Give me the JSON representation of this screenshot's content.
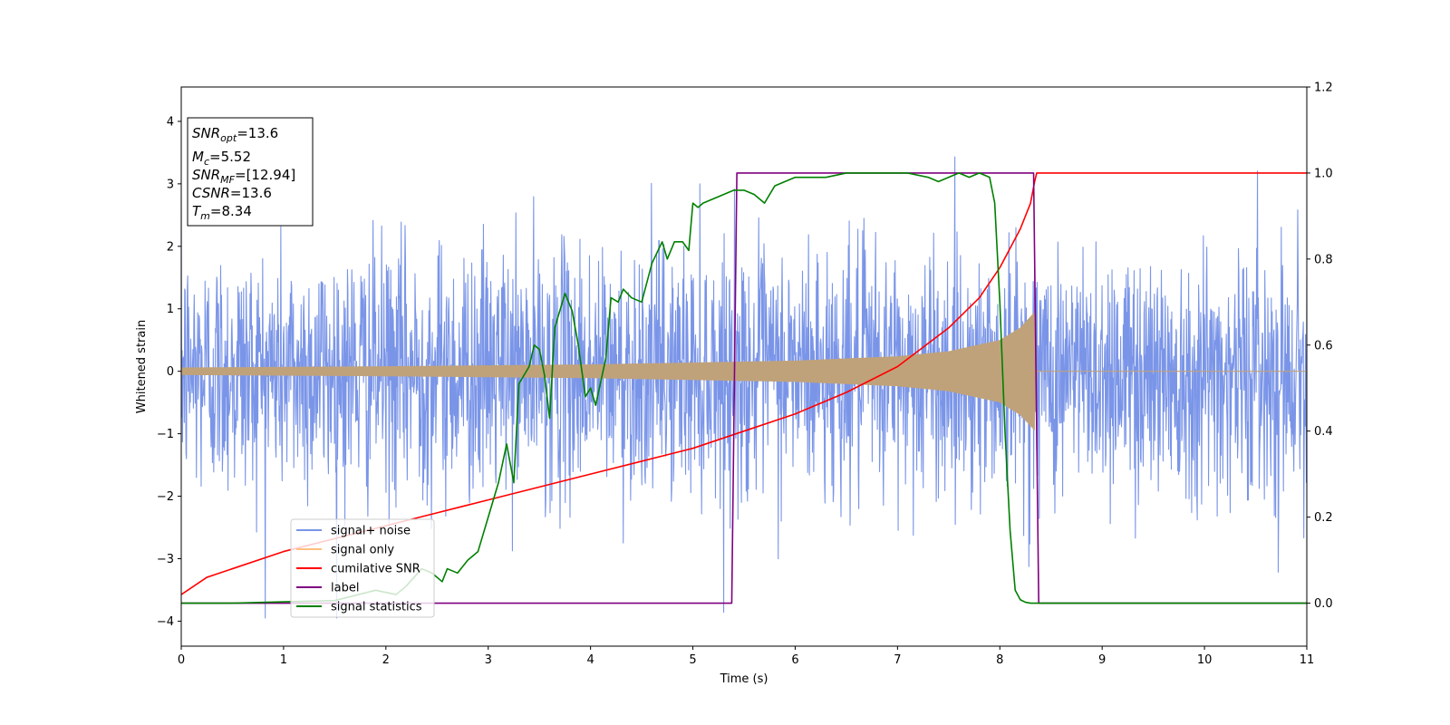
{
  "chart_data": {
    "type": "line",
    "xlabel": "Time (s)",
    "ylabel": "Whitened strain",
    "xlim": [
      0,
      11
    ],
    "ylim": [
      -4.4,
      4.55
    ],
    "y2lim": [
      -0.1,
      1.2
    ],
    "x_ticks": [
      0,
      1,
      2,
      3,
      4,
      5,
      6,
      7,
      8,
      9,
      10,
      11
    ],
    "y_ticks": [
      -4,
      -3,
      -2,
      -1,
      0,
      1,
      2,
      3,
      4
    ],
    "y_tick_labels": [
      "−4",
      "−3",
      "−2",
      "−1",
      "0",
      "1",
      "2",
      "3",
      "4"
    ],
    "y2_ticks": [
      0.0,
      0.2,
      0.4,
      0.6,
      0.8,
      1.0,
      1.2
    ],
    "y2_tick_labels": [
      "0.0",
      "0.2",
      "0.4",
      "0.6",
      "0.8",
      "1.0",
      "1.2"
    ],
    "grid": false,
    "legend_position": "lower-left",
    "info_box_position": "upper-left",
    "info_box": [
      {
        "base": "SNR",
        "sub": "opt",
        "rest": "=13.6"
      },
      {
        "base": "M",
        "sub": "c",
        "rest": "=5.52"
      },
      {
        "base": "SNR",
        "sub": "MF",
        "rest": "=[12.94]"
      },
      {
        "base": "CSNR",
        "sub": "",
        "rest": "=13.6"
      },
      {
        "base": "T",
        "sub": "m",
        "rest": "=8.34"
      }
    ],
    "series": [
      {
        "name": "signal+ noise",
        "color": "#7a95e8",
        "axis": "left",
        "kind": "noise",
        "noise_std": 1.0,
        "x_range": [
          0,
          11
        ],
        "note_y_extent": [
          -3.9,
          4.1
        ]
      },
      {
        "name": "signal only",
        "color": "#c0a27a",
        "legend_color": "#ffbf7f",
        "axis": "left",
        "kind": "chirp",
        "envelope": {
          "x": [
            0,
            2,
            4,
            6,
            7,
            7.5,
            8,
            8.2,
            8.34,
            8.36,
            11
          ],
          "y": [
            0.06,
            0.08,
            0.11,
            0.17,
            0.24,
            0.32,
            0.5,
            0.7,
            0.95,
            0.0,
            0.0
          ]
        },
        "merger_time": 8.34
      },
      {
        "name": "cumilative SNR",
        "color": "#ff0000",
        "axis": "right",
        "x": [
          0,
          0.25,
          0.5,
          1,
          1.5,
          2,
          2.5,
          3,
          3.5,
          4,
          4.5,
          5,
          5.5,
          6,
          6.5,
          7,
          7.5,
          7.8,
          8.0,
          8.2,
          8.3,
          8.34,
          8.36,
          11
        ],
        "y": [
          0.02,
          0.06,
          0.08,
          0.12,
          0.15,
          0.18,
          0.21,
          0.24,
          0.27,
          0.3,
          0.33,
          0.36,
          0.4,
          0.44,
          0.49,
          0.55,
          0.64,
          0.71,
          0.78,
          0.87,
          0.93,
          0.98,
          1.0,
          1.0
        ]
      },
      {
        "name": "label",
        "color": "#800080",
        "axis": "right",
        "x": [
          0,
          5.38,
          5.43,
          8.33,
          8.38,
          11
        ],
        "y": [
          0.0,
          0.0,
          1.0,
          1.0,
          0.0,
          0.0
        ]
      },
      {
        "name": "signal statistics",
        "color": "#008000",
        "axis": "right",
        "x": [
          0,
          0.5,
          1,
          1.5,
          1.9,
          2.1,
          2.2,
          2.35,
          2.45,
          2.55,
          2.6,
          2.7,
          2.8,
          2.9,
          3.0,
          3.1,
          3.18,
          3.25,
          3.3,
          3.4,
          3.45,
          3.5,
          3.55,
          3.6,
          3.65,
          3.75,
          3.82,
          3.88,
          3.95,
          4.0,
          4.05,
          4.15,
          4.2,
          4.27,
          4.32,
          4.4,
          4.5,
          4.6,
          4.7,
          4.75,
          4.82,
          4.9,
          4.96,
          5.0,
          5.05,
          5.1,
          5.2,
          5.3,
          5.4,
          5.5,
          5.6,
          5.7,
          5.8,
          5.9,
          6.0,
          6.1,
          6.2,
          6.3,
          6.4,
          6.5,
          6.7,
          6.9,
          7.1,
          7.3,
          7.4,
          7.5,
          7.6,
          7.7,
          7.8,
          7.9,
          7.95,
          8.0,
          8.05,
          8.1,
          8.15,
          8.2,
          8.25,
          8.3,
          8.35,
          11
        ],
        "y": [
          0.0,
          0.0,
          0.003,
          0.006,
          0.03,
          0.02,
          0.04,
          0.08,
          0.07,
          0.05,
          0.08,
          0.07,
          0.1,
          0.12,
          0.2,
          0.28,
          0.37,
          0.28,
          0.51,
          0.55,
          0.6,
          0.59,
          0.53,
          0.43,
          0.64,
          0.72,
          0.68,
          0.6,
          0.48,
          0.5,
          0.46,
          0.57,
          0.71,
          0.7,
          0.73,
          0.71,
          0.7,
          0.79,
          0.84,
          0.8,
          0.84,
          0.84,
          0.82,
          0.93,
          0.92,
          0.93,
          0.94,
          0.95,
          0.96,
          0.96,
          0.95,
          0.93,
          0.97,
          0.98,
          0.99,
          0.99,
          0.99,
          0.99,
          0.995,
          1.0,
          1.0,
          1.0,
          1.0,
          0.99,
          0.98,
          0.99,
          1.0,
          0.99,
          1.0,
          0.99,
          0.93,
          0.7,
          0.4,
          0.17,
          0.03,
          0.008,
          0.002,
          0.0,
          0.0,
          0.0
        ]
      }
    ]
  }
}
